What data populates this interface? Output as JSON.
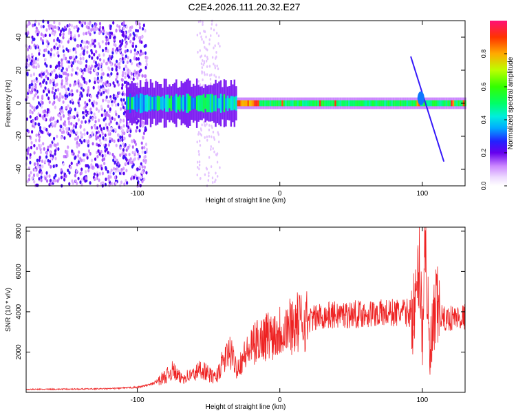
{
  "title": "C2E4.2026.111.20.32.E27",
  "chart_data": [
    {
      "type": "heatmap",
      "title": "C2E4.2026.111.20.32.E27",
      "xlabel": "Height of straight line (km)",
      "ylabel": "Frequency (Hz)",
      "xlim": [
        -178,
        130
      ],
      "ylim": [
        -50,
        50
      ],
      "xticks": [
        -100,
        0,
        100
      ],
      "xtick_labels": [
        "-100",
        "0",
        "100"
      ],
      "yticks": [
        -40,
        -20,
        0,
        20,
        40
      ],
      "ytick_labels": [
        "-40",
        "-20",
        "0",
        "20",
        "40"
      ],
      "colorbar": {
        "label": "Normalized spectral amplitude",
        "range": [
          0,
          1
        ],
        "ticks": [
          0,
          0.2,
          0.4,
          0.6,
          0.8
        ],
        "tick_labels": [
          "0.0",
          "0.2",
          "0.4",
          "0.6",
          "0.8"
        ]
      },
      "features": [
        {
          "name": "broadband noise",
          "x_range": [
            -178,
            -93
          ],
          "freq_range": [
            -50,
            50
          ],
          "amplitude": 0.15
        },
        {
          "name": "weak noise column",
          "x_range": [
            -58,
            -42
          ],
          "freq_range": [
            -50,
            50
          ],
          "amplitude": 0.05
        },
        {
          "name": "signal band",
          "x_range": [
            -108,
            130
          ],
          "freq_center": 0,
          "amplitude_peak": 0.95
        },
        {
          "name": "chirp feature",
          "x_range": [
            92,
            115
          ],
          "freq_range": [
            -35,
            28
          ],
          "amplitude": 0.25
        }
      ]
    },
    {
      "type": "line",
      "xlabel": "Height of straight line (km)",
      "ylabel": "SNR (10 * v/v)",
      "xlim": [
        -178,
        130
      ],
      "ylim": [
        0,
        8200
      ],
      "xticks": [
        -100,
        0,
        100
      ],
      "xtick_labels": [
        "-100",
        "0",
        "100"
      ],
      "yticks": [
        2000,
        4000,
        6000,
        8000
      ],
      "ytick_labels": [
        "2000",
        "4000",
        "6000",
        "8000"
      ],
      "color": "#ee2222",
      "series": [
        {
          "name": "SNR",
          "x": [
            -178,
            -150,
            -120,
            -100,
            -90,
            -80,
            -75,
            -70,
            -60,
            -55,
            -50,
            -45,
            -40,
            -35,
            -30,
            -25,
            -20,
            -15,
            -10,
            -5,
            0,
            5,
            10,
            20,
            30,
            40,
            60,
            80,
            90,
            95,
            98,
            100,
            102,
            105,
            110,
            115,
            120,
            130
          ],
          "y": [
            150,
            160,
            180,
            250,
            400,
            800,
            1100,
            700,
            900,
            1200,
            900,
            700,
            1500,
            2000,
            1200,
            1800,
            2200,
            2600,
            2800,
            2900,
            3100,
            3300,
            3400,
            3600,
            3800,
            3850,
            3900,
            3950,
            3950,
            4000,
            6500,
            3000,
            8000,
            1500,
            4200,
            3600,
            3700,
            3750
          ]
        }
      ]
    }
  ]
}
